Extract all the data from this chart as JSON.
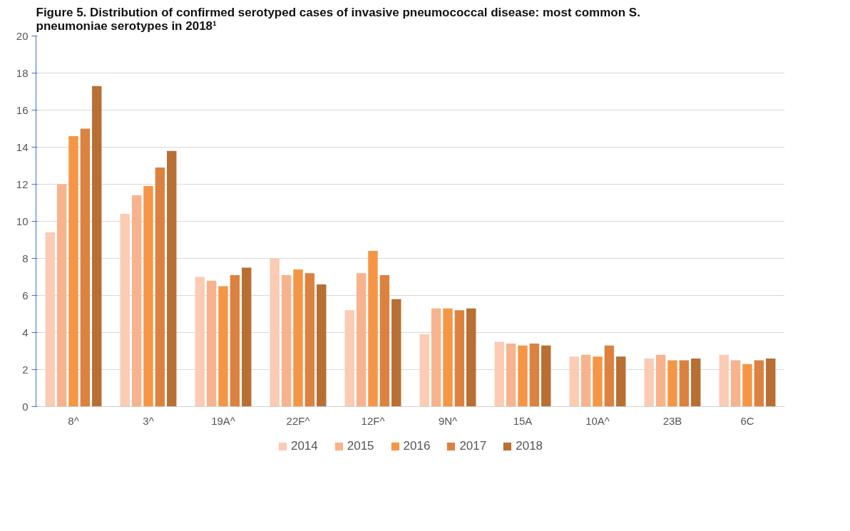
{
  "chart_data": {
    "type": "bar",
    "title": "Figure 5. Distribution of confirmed serotyped cases of invasive pneumococcal disease: most common S. pneumoniae serotypes in 2018¹",
    "categories": [
      "8^",
      "3^",
      "19A^",
      "22F^",
      "12F^",
      "9N^",
      "15A",
      "10A^",
      "23B",
      "6C"
    ],
    "series": [
      {
        "name": "2014",
        "color": "#fbcbb4",
        "values": [
          9.4,
          10.4,
          7.0,
          8.0,
          5.2,
          3.9,
          3.5,
          2.7,
          2.6,
          2.8
        ]
      },
      {
        "name": "2015",
        "color": "#f7b38d",
        "values": [
          12.0,
          11.4,
          6.8,
          7.1,
          7.2,
          5.3,
          3.4,
          2.8,
          2.8,
          2.5
        ]
      },
      {
        "name": "2016",
        "color": "#f59646",
        "values": [
          14.6,
          11.9,
          6.5,
          7.4,
          8.4,
          5.3,
          3.3,
          2.7,
          2.5,
          2.3
        ]
      },
      {
        "name": "2017",
        "color": "#db8240",
        "values": [
          15.0,
          12.9,
          7.1,
          7.2,
          7.1,
          5.2,
          3.4,
          3.3,
          2.5,
          2.5
        ]
      },
      {
        "name": "2018",
        "color": "#b86f33",
        "values": [
          17.3,
          13.8,
          7.5,
          6.6,
          5.8,
          5.3,
          3.3,
          2.7,
          2.6,
          2.6
        ]
      }
    ],
    "ylim": [
      0,
      20
    ],
    "yticks": [
      0,
      2,
      4,
      6,
      8,
      10,
      12,
      14,
      16,
      18,
      20
    ],
    "grid": "y",
    "legend": "bottom"
  }
}
